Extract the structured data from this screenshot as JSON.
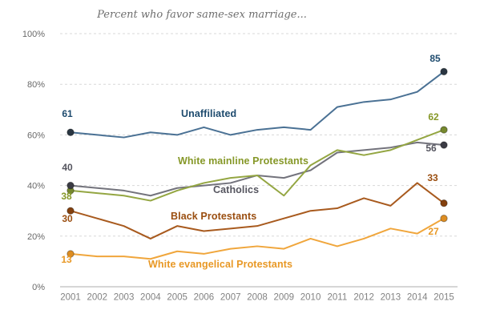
{
  "title": "Percent who favor same-sex marriage...",
  "chart_data": {
    "type": "line",
    "x": [
      2001,
      2002,
      2003,
      2004,
      2005,
      2006,
      2007,
      2008,
      2009,
      2010,
      2011,
      2012,
      2013,
      2014,
      2015
    ],
    "x_tick_labels": [
      "2001",
      "2002",
      "2003",
      "2004",
      "2005",
      "2006",
      "2007",
      "2008",
      "2009",
      "2010",
      "2011",
      "2012",
      "2013",
      "2014",
      "2015"
    ],
    "y_ticks": [
      0,
      20,
      40,
      60,
      80,
      100
    ],
    "y_tick_labels": [
      "0%",
      "20%",
      "40%",
      "60%",
      "80%",
      "100%"
    ],
    "ylim": [
      0,
      100
    ],
    "grid": "horizontal dashed gridlines at 20% intervals, solid baseline at 0%",
    "legend_position": "inline labels next to lines",
    "title": "Percent who favor same-sex marriage...",
    "series": [
      {
        "name": "Unaffiliated",
        "color": "#4a7194",
        "label_color": "#1e4b6e",
        "dot_color": "#2a3642",
        "values": [
          61,
          60,
          59,
          61,
          60,
          63,
          60,
          62,
          63,
          62,
          71,
          73,
          74,
          77,
          85
        ],
        "first_label": "61",
        "last_label": "85"
      },
      {
        "name": "White mainline Protestants",
        "color": "#94a642",
        "label_color": "#869828",
        "dot_color": "#76882e",
        "values": [
          38,
          37,
          36,
          34,
          38,
          41,
          43,
          44,
          36,
          48,
          54,
          52,
          54,
          58,
          62
        ],
        "first_label": "38",
        "last_label": "62"
      },
      {
        "name": "Catholics",
        "color": "#73737c",
        "label_color": "#55555f",
        "dot_color": "#3b3b44",
        "values": [
          40,
          39,
          38,
          36,
          39,
          40,
          41,
          44,
          43,
          46,
          53,
          54,
          55,
          57,
          56
        ],
        "first_label": "40",
        "last_label": "56"
      },
      {
        "name": "Black Protestants",
        "color": "#a85a1e",
        "label_color": "#9a4e10",
        "dot_color": "#84400e",
        "values": [
          30,
          27,
          24,
          19,
          24,
          22,
          23,
          24,
          27,
          30,
          31,
          35,
          32,
          41,
          33
        ],
        "first_label": "30",
        "last_label": "33"
      },
      {
        "name": "White evangelical Protestants",
        "color": "#f0a63c",
        "label_color": "#e89825",
        "dot_color": "#dd8d22",
        "values": [
          13,
          12,
          12,
          11,
          14,
          13,
          15,
          16,
          15,
          19,
          16,
          19,
          23,
          21,
          27
        ],
        "first_label": "13",
        "last_label": "27"
      }
    ],
    "colors": {
      "grid": "#d8d8d8",
      "axis": "#bdbdbd",
      "title_text": "#6e6e6e",
      "y_tick_text": "#696969",
      "x_tick_text": "#828282"
    }
  }
}
